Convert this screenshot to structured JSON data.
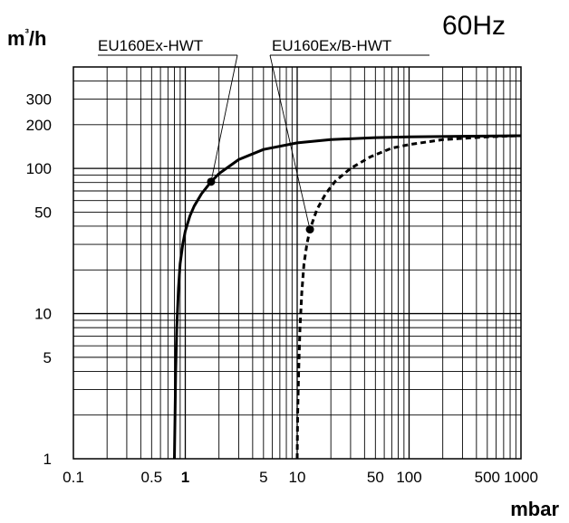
{
  "chart_data": {
    "type": "line",
    "title": "60Hz",
    "xlabel": "mbar",
    "ylabel": "m³/h",
    "xscale": "log",
    "yscale": "log",
    "xlim": [
      0.1,
      1000
    ],
    "ylim": [
      1,
      500
    ],
    "x_tick_labels": [
      {
        "value": 0.1,
        "label": "0.1",
        "bold": false
      },
      {
        "value": 0.5,
        "label": "0.5",
        "bold": false
      },
      {
        "value": 1,
        "label": "1",
        "bold": true
      },
      {
        "value": 5,
        "label": "5",
        "bold": false
      },
      {
        "value": 10,
        "label": "10",
        "bold": false
      },
      {
        "value": 50,
        "label": "50",
        "bold": false
      },
      {
        "value": 100,
        "label": "100",
        "bold": false
      },
      {
        "value": 500,
        "label": "500",
        "bold": false
      },
      {
        "value": 1000,
        "label": "1000",
        "bold": false
      }
    ],
    "y_tick_labels": [
      {
        "value": 1,
        "label": "1"
      },
      {
        "value": 5,
        "label": "5"
      },
      {
        "value": 10,
        "label": "10"
      },
      {
        "value": 50,
        "label": "50"
      },
      {
        "value": 100,
        "label": "100"
      },
      {
        "value": 200,
        "label": "200"
      },
      {
        "value": 300,
        "label": "300"
      }
    ],
    "grid": true,
    "series": [
      {
        "name": "EU160Ex-HWT",
        "style": "solid",
        "x": [
          0.8,
          0.81,
          0.82,
          0.84,
          0.87,
          0.9,
          0.95,
          1.0,
          1.1,
          1.2,
          1.4,
          1.7,
          2.0,
          3.0,
          5.0,
          10,
          20,
          50,
          100,
          1000
        ],
        "y": [
          1,
          2,
          4,
          8,
          15,
          22,
          30,
          37,
          47,
          55,
          67,
          81,
          92,
          115,
          135,
          150,
          158,
          163,
          165,
          168
        ],
        "marker": {
          "x": 1.7,
          "y": 81
        }
      },
      {
        "name": "EU160Ex/B-HWT",
        "style": "dashed",
        "x": [
          10,
          10.1,
          10.3,
          10.6,
          11,
          11.5,
          12.2,
          13,
          15,
          18,
          22,
          30,
          45,
          70,
          100,
          200,
          500,
          1000
        ],
        "y": [
          1,
          2,
          4,
          8,
          14,
          22,
          30,
          38,
          52,
          67,
          82,
          100,
          120,
          138,
          146,
          158,
          165,
          168
        ],
        "marker": {
          "x": 13,
          "y": 38
        }
      }
    ]
  }
}
